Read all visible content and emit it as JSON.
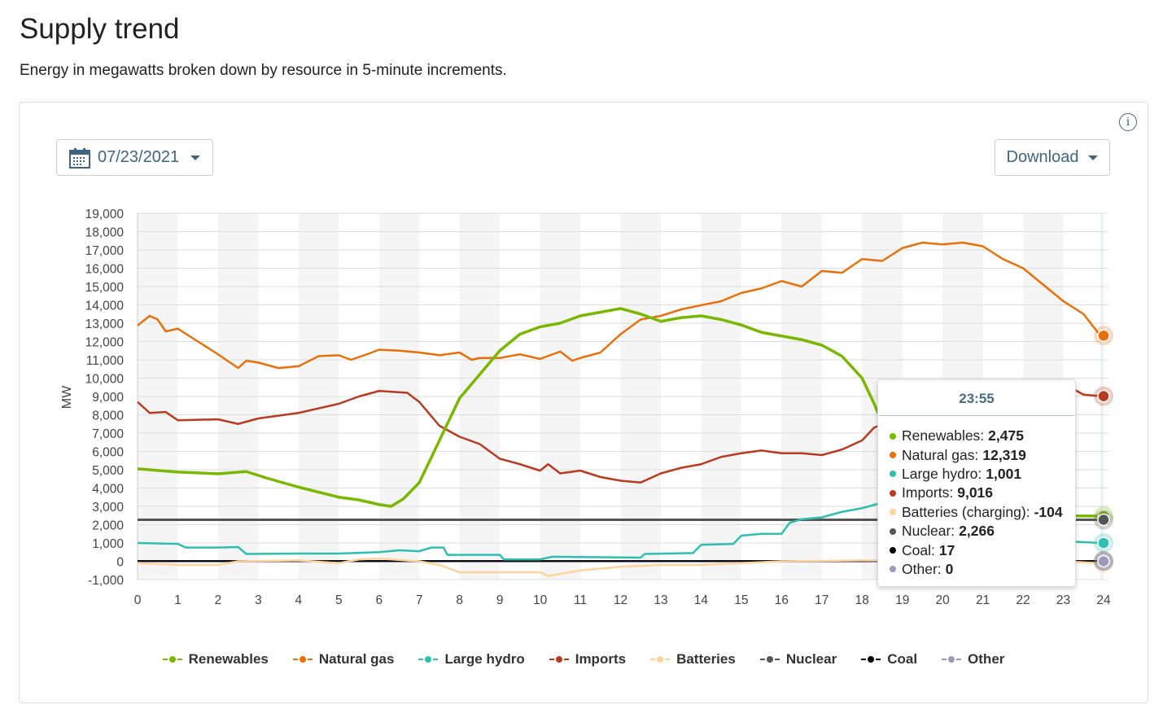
{
  "title": "Supply trend",
  "subtitle": "Energy in megawatts broken down by resource in 5-minute increments.",
  "controls": {
    "date": "07/23/2021",
    "download": "Download",
    "info_icon": "i"
  },
  "tooltip": {
    "time": "23:55",
    "rows": [
      {
        "label": "Renewables:",
        "value": "2,475",
        "color": "#7ab800"
      },
      {
        "label": "Natural gas:",
        "value": "12,319",
        "color": "#e8700a"
      },
      {
        "label": "Large hydro:",
        "value": "1,001",
        "color": "#2fbfb0"
      },
      {
        "label": "Imports:",
        "value": "9,016",
        "color": "#b83a20"
      },
      {
        "label": "Batteries (charging):",
        "value": "-104",
        "color": "#fdd49e"
      },
      {
        "label": "Nuclear:",
        "value": "2,266",
        "color": "#555555"
      },
      {
        "label": "Coal:",
        "value": "17",
        "color": "#000000"
      },
      {
        "label": "Other:",
        "value": "0",
        "color": "#9e98bd"
      }
    ]
  },
  "chart_data": {
    "type": "line",
    "ylabel": "MW",
    "xlabel": "",
    "ylim": [
      -1000,
      19000
    ],
    "xlim": [
      0,
      24
    ],
    "yticks": [
      "19,000",
      "18,000",
      "17,000",
      "16,000",
      "15,000",
      "14,000",
      "13,000",
      "12,000",
      "11,000",
      "10,000",
      "9,000",
      "8,000",
      "7,000",
      "6,000",
      "5,000",
      "4,000",
      "3,000",
      "2,000",
      "1,000",
      "0",
      "-1,000"
    ],
    "ytick_values": [
      19000,
      18000,
      17000,
      16000,
      15000,
      14000,
      13000,
      12000,
      11000,
      10000,
      9000,
      8000,
      7000,
      6000,
      5000,
      4000,
      3000,
      2000,
      1000,
      0,
      -1000
    ],
    "xticks": [
      "0",
      "1",
      "2",
      "3",
      "4",
      "5",
      "6",
      "7",
      "8",
      "9",
      "10",
      "11",
      "12",
      "13",
      "14",
      "15",
      "16",
      "17",
      "18",
      "19",
      "20",
      "21",
      "22",
      "23",
      "24"
    ],
    "legend_position": "bottom",
    "series": [
      {
        "name": "Renewables",
        "color": "#7ab800",
        "points": [
          [
            0,
            5050
          ],
          [
            1,
            4870
          ],
          [
            2,
            4780
          ],
          [
            2.7,
            4900
          ],
          [
            3.2,
            4550
          ],
          [
            4,
            4050
          ],
          [
            5,
            3500
          ],
          [
            5.5,
            3350
          ],
          [
            6,
            3100
          ],
          [
            6.3,
            3000
          ],
          [
            6.6,
            3400
          ],
          [
            7,
            4300
          ],
          [
            7.5,
            6600
          ],
          [
            8,
            8900
          ],
          [
            8.5,
            10200
          ],
          [
            9,
            11500
          ],
          [
            9.5,
            12400
          ],
          [
            10,
            12800
          ],
          [
            10.5,
            13000
          ],
          [
            11,
            13400
          ],
          [
            11.5,
            13600
          ],
          [
            12,
            13800
          ],
          [
            12.5,
            13500
          ],
          [
            13,
            13100
          ],
          [
            13.5,
            13300
          ],
          [
            14,
            13400
          ],
          [
            14.5,
            13200
          ],
          [
            15,
            12900
          ],
          [
            15.5,
            12500
          ],
          [
            16,
            12300
          ],
          [
            16.5,
            12100
          ],
          [
            17,
            11800
          ],
          [
            17.5,
            11200
          ],
          [
            18,
            10000
          ],
          [
            18.3,
            8600
          ],
          [
            18.7,
            6500
          ],
          [
            19.2,
            4500
          ],
          [
            19.7,
            3300
          ],
          [
            20.5,
            2700
          ],
          [
            21.5,
            2500
          ],
          [
            23,
            2480
          ],
          [
            23.92,
            2475
          ]
        ]
      },
      {
        "name": "Natural gas",
        "color": "#e8700a",
        "points": [
          [
            0,
            12870
          ],
          [
            0.3,
            13400
          ],
          [
            0.5,
            13200
          ],
          [
            0.7,
            12550
          ],
          [
            1,
            12700
          ],
          [
            1.5,
            12000
          ],
          [
            2,
            11300
          ],
          [
            2.5,
            10550
          ],
          [
            2.7,
            10950
          ],
          [
            3,
            10850
          ],
          [
            3.5,
            10550
          ],
          [
            4,
            10650
          ],
          [
            4.5,
            11200
          ],
          [
            5,
            11250
          ],
          [
            5.3,
            11000
          ],
          [
            5.7,
            11300
          ],
          [
            6,
            11550
          ],
          [
            6.5,
            11500
          ],
          [
            7,
            11400
          ],
          [
            7.5,
            11250
          ],
          [
            8,
            11400
          ],
          [
            8.3,
            11000
          ],
          [
            8.5,
            11100
          ],
          [
            9,
            11100
          ],
          [
            9.5,
            11300
          ],
          [
            10,
            11050
          ],
          [
            10.5,
            11450
          ],
          [
            10.8,
            10950
          ],
          [
            11,
            11100
          ],
          [
            11.5,
            11400
          ],
          [
            12,
            12400
          ],
          [
            12.5,
            13200
          ],
          [
            13,
            13400
          ],
          [
            13.5,
            13750
          ],
          [
            14,
            13980
          ],
          [
            14.5,
            14200
          ],
          [
            15,
            14650
          ],
          [
            15.5,
            14900
          ],
          [
            16,
            15300
          ],
          [
            16.5,
            15000
          ],
          [
            17,
            15850
          ],
          [
            17.5,
            15750
          ],
          [
            18,
            16500
          ],
          [
            18.5,
            16400
          ],
          [
            19,
            17100
          ],
          [
            19.5,
            17400
          ],
          [
            20,
            17300
          ],
          [
            20.5,
            17400
          ],
          [
            21,
            17200
          ],
          [
            21.5,
            16500
          ],
          [
            22,
            16000
          ],
          [
            22.5,
            15100
          ],
          [
            23,
            14200
          ],
          [
            23.5,
            13500
          ],
          [
            23.92,
            12319
          ]
        ]
      },
      {
        "name": "Large hydro",
        "color": "#2fbfb0",
        "points": [
          [
            0,
            1000
          ],
          [
            1,
            950
          ],
          [
            1.2,
            750
          ],
          [
            2,
            750
          ],
          [
            2.5,
            780
          ],
          [
            2.7,
            400
          ],
          [
            4,
            420
          ],
          [
            5,
            420
          ],
          [
            6,
            500
          ],
          [
            6.5,
            600
          ],
          [
            7,
            550
          ],
          [
            7.3,
            750
          ],
          [
            7.6,
            750
          ],
          [
            7.7,
            350
          ],
          [
            9,
            350
          ],
          [
            9.1,
            100
          ],
          [
            10,
            100
          ],
          [
            10.3,
            250
          ],
          [
            12.5,
            200
          ],
          [
            12.6,
            400
          ],
          [
            13.8,
            450
          ],
          [
            14,
            900
          ],
          [
            14.8,
            950
          ],
          [
            15,
            1400
          ],
          [
            15.5,
            1500
          ],
          [
            16,
            1500
          ],
          [
            16.2,
            2100
          ],
          [
            16.5,
            2300
          ],
          [
            17,
            2400
          ],
          [
            17.5,
            2700
          ],
          [
            18,
            2900
          ],
          [
            18.5,
            3200
          ],
          [
            19,
            3000
          ],
          [
            20,
            2600
          ],
          [
            21,
            2000
          ],
          [
            22,
            1500
          ],
          [
            23,
            1100
          ],
          [
            23.92,
            1001
          ]
        ]
      },
      {
        "name": "Imports",
        "color": "#b83a20",
        "points": [
          [
            0,
            8700
          ],
          [
            0.3,
            8100
          ],
          [
            0.7,
            8150
          ],
          [
            1,
            7700
          ],
          [
            2,
            7750
          ],
          [
            2.5,
            7500
          ],
          [
            3,
            7800
          ],
          [
            4,
            8100
          ],
          [
            5,
            8600
          ],
          [
            5.5,
            9000
          ],
          [
            6,
            9300
          ],
          [
            6.7,
            9200
          ],
          [
            7,
            8700
          ],
          [
            7.5,
            7400
          ],
          [
            8,
            6800
          ],
          [
            8.5,
            6400
          ],
          [
            9,
            5600
          ],
          [
            9.5,
            5300
          ],
          [
            10,
            4950
          ],
          [
            10.2,
            5300
          ],
          [
            10.5,
            4800
          ],
          [
            11,
            4950
          ],
          [
            11.5,
            4600
          ],
          [
            12,
            4400
          ],
          [
            12.5,
            4300
          ],
          [
            13,
            4800
          ],
          [
            13.5,
            5100
          ],
          [
            14,
            5300
          ],
          [
            14.5,
            5700
          ],
          [
            15,
            5900
          ],
          [
            15.5,
            6050
          ],
          [
            16,
            5900
          ],
          [
            16.5,
            5900
          ],
          [
            17,
            5800
          ],
          [
            17.5,
            6100
          ],
          [
            18,
            6600
          ],
          [
            18.3,
            7300
          ],
          [
            19,
            7900
          ],
          [
            19.5,
            8300
          ],
          [
            20,
            8600
          ],
          [
            20.5,
            8900
          ],
          [
            21,
            9100
          ],
          [
            22,
            9100
          ],
          [
            22.5,
            9300
          ],
          [
            23,
            9700
          ],
          [
            23.5,
            9100
          ],
          [
            23.92,
            9016
          ]
        ]
      },
      {
        "name": "Batteries",
        "color": "#fdd49e",
        "points": [
          [
            0,
            -100
          ],
          [
            1,
            -200
          ],
          [
            2,
            -200
          ],
          [
            2.5,
            0
          ],
          [
            4,
            50
          ],
          [
            5,
            -100
          ],
          [
            5.5,
            100
          ],
          [
            6,
            150
          ],
          [
            7,
            0
          ],
          [
            7.5,
            -200
          ],
          [
            8,
            -600
          ],
          [
            9,
            -600
          ],
          [
            10,
            -600
          ],
          [
            10.2,
            -800
          ],
          [
            11,
            -500
          ],
          [
            12,
            -300
          ],
          [
            13,
            -200
          ],
          [
            14,
            -200
          ],
          [
            15,
            -100
          ],
          [
            16,
            0
          ],
          [
            18,
            50
          ],
          [
            23,
            0
          ],
          [
            23.92,
            -104
          ]
        ]
      },
      {
        "name": "Nuclear",
        "color": "#555555",
        "points": [
          [
            0,
            2266
          ],
          [
            23.92,
            2266
          ]
        ]
      },
      {
        "name": "Coal",
        "color": "#000000",
        "points": [
          [
            0,
            17
          ],
          [
            23.92,
            17
          ]
        ]
      },
      {
        "name": "Other",
        "color": "#9e98bd",
        "points": [
          [
            0,
            0
          ],
          [
            23.92,
            0
          ]
        ]
      }
    ]
  }
}
